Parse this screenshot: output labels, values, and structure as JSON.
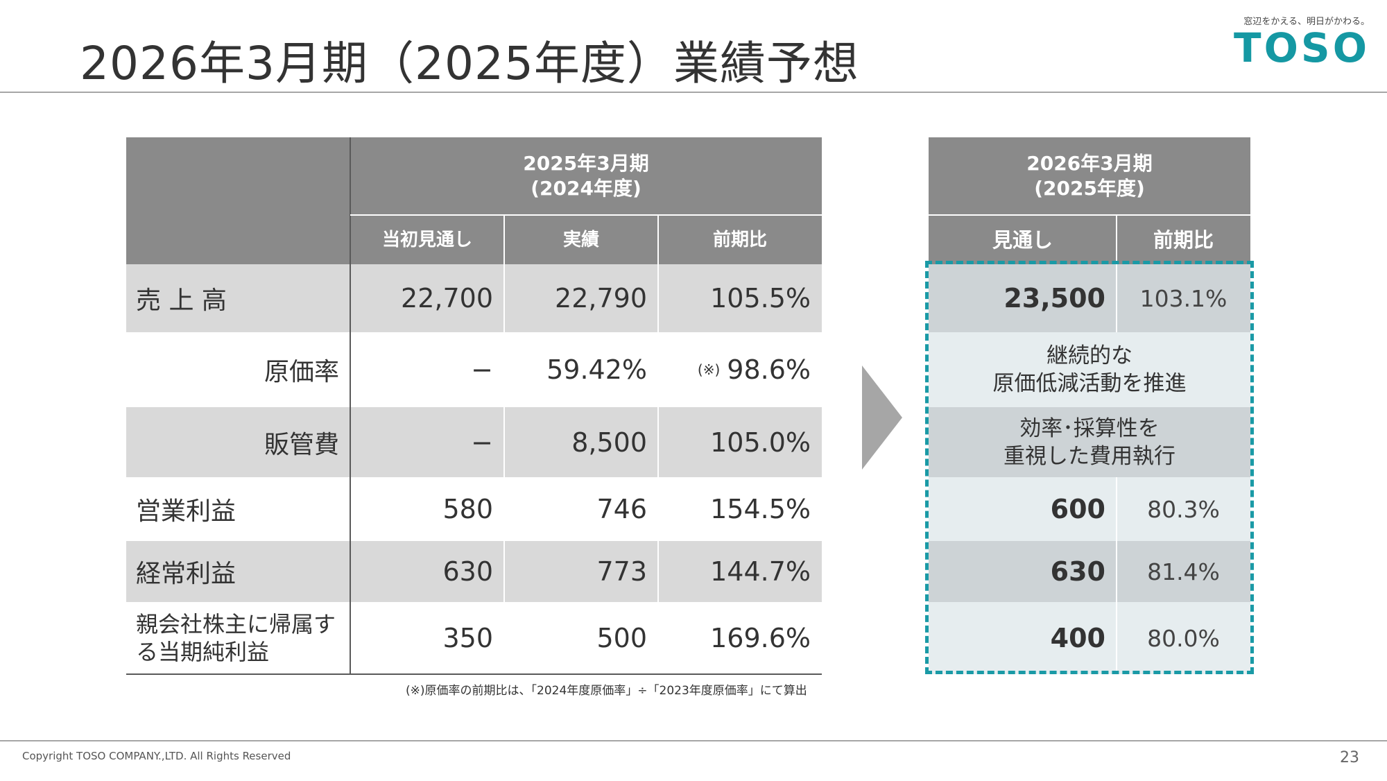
{
  "page": {
    "title": "2026年3月期（2025年度）業績予想",
    "tagline": "窓辺をかえる、明日がかわる。",
    "logo": "TOSO",
    "copyright": "Copyright TOSO COMPANY.,LTD. All Rights Reserved",
    "page_number": "23",
    "footnote": "(※)原価率の前期比は、「2024年度原価率」÷「2023年度原価率」にて算出"
  },
  "left_table": {
    "period_header_line1": "2025年3月期",
    "period_header_line2": "(2024年度)",
    "col_initial": "当初見通し",
    "col_actual": "実績",
    "col_yoy": "前期比",
    "note_mark": "(※)",
    "rows": [
      {
        "label": "売 上 高",
        "initial": "22,700",
        "actual": "22,790",
        "yoy": "105.5%"
      },
      {
        "label": "原価率",
        "initial": "−",
        "actual": "59.42%",
        "yoy": "98.6%"
      },
      {
        "label": "販管費",
        "initial": "−",
        "actual": "8,500",
        "yoy": "105.0%"
      },
      {
        "label": "営業利益",
        "initial": "580",
        "actual": "746",
        "yoy": "154.5%"
      },
      {
        "label": "経常利益",
        "initial": "630",
        "actual": "773",
        "yoy": "144.7%"
      },
      {
        "label": "親会社株主に帰属する当期純利益",
        "initial": "350",
        "actual": "500",
        "yoy": "169.6%"
      }
    ]
  },
  "right_table": {
    "period_header_line1": "2026年3月期",
    "period_header_line2": "(2025年度)",
    "col_forecast": "見通し",
    "col_yoy": "前期比",
    "sales": {
      "forecast": "23,500",
      "yoy": "103.1%"
    },
    "cost_text_line1": "継続的な",
    "cost_text_line2": "原価低減活動を推進",
    "sga_text_line1": "効率･採算性を",
    "sga_text_line2": "重視した費用執行",
    "operating": {
      "forecast": "600",
      "yoy": "80.3%"
    },
    "ordinary": {
      "forecast": "630",
      "yoy": "81.4%"
    },
    "net": {
      "forecast": "400",
      "yoy": "80.0%"
    }
  }
}
